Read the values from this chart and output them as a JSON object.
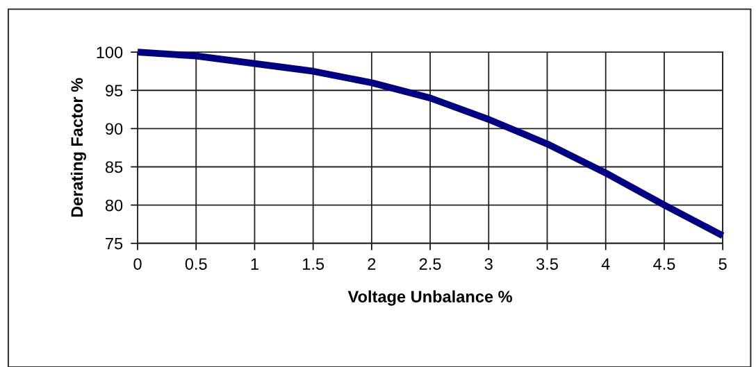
{
  "chart_data": {
    "type": "line",
    "xlabel": "Voltage Unbalance %",
    "ylabel": "Derating Factor %",
    "x": [
      0,
      0.5,
      1,
      1.5,
      2,
      2.5,
      3,
      3.5,
      4,
      4.5,
      5
    ],
    "series": [
      {
        "color": "#000080",
        "values": [
          100,
          99.5,
          98.5,
          97.5,
          96,
          94,
          91.2,
          88,
          84.2,
          80,
          76
        ]
      }
    ],
    "xlim": [
      0,
      5
    ],
    "xticks": [
      0,
      0.5,
      1,
      1.5,
      2,
      2.5,
      3,
      3.5,
      4,
      4.5,
      5
    ],
    "ylim": [
      75,
      100
    ],
    "yticks": [
      75,
      80,
      85,
      90,
      95,
      100
    ],
    "grid": true,
    "marker": "none",
    "line_style": "solid"
  }
}
